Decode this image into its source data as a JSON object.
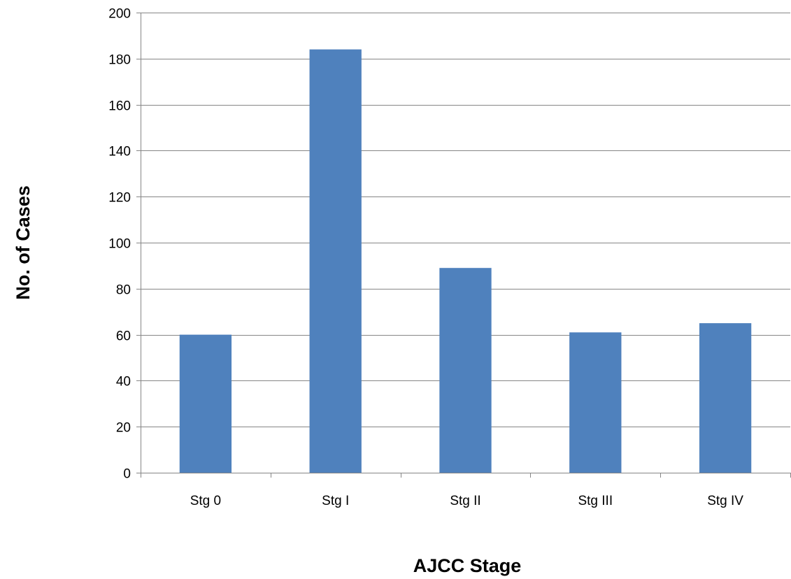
{
  "chart_data": {
    "type": "bar",
    "title": "",
    "xlabel": "AJCC Stage",
    "ylabel": "No. of Cases",
    "categories": [
      "Stg 0",
      "Stg I",
      "Stg II",
      "Stg III",
      "Stg IV"
    ],
    "values": [
      60,
      184,
      89,
      61,
      65
    ],
    "ylim": [
      0,
      200
    ],
    "yticks": [
      "0",
      "20",
      "40",
      "60",
      "80",
      "100",
      "120",
      "140",
      "160",
      "180",
      "200"
    ],
    "grid": true,
    "legend": "none",
    "colors": {
      "bar": "#4F81BD",
      "grid": "#868686",
      "axis": "#868686"
    }
  }
}
